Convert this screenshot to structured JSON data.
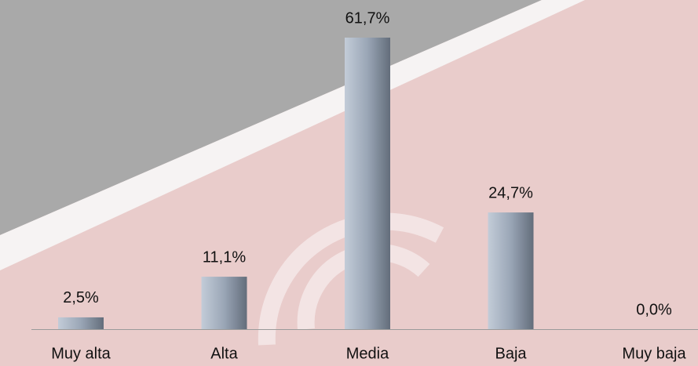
{
  "chart_data": {
    "type": "bar",
    "categories": [
      "Muy alta",
      "Alta",
      "Media",
      "Baja",
      "Muy baja"
    ],
    "values": [
      2.5,
      11.1,
      61.7,
      24.7,
      0.0
    ],
    "value_labels": [
      "2,5%",
      "11,1%",
      "61,7%",
      "24,7%",
      "0,0%"
    ],
    "color": "#8e9aab"
  }
}
